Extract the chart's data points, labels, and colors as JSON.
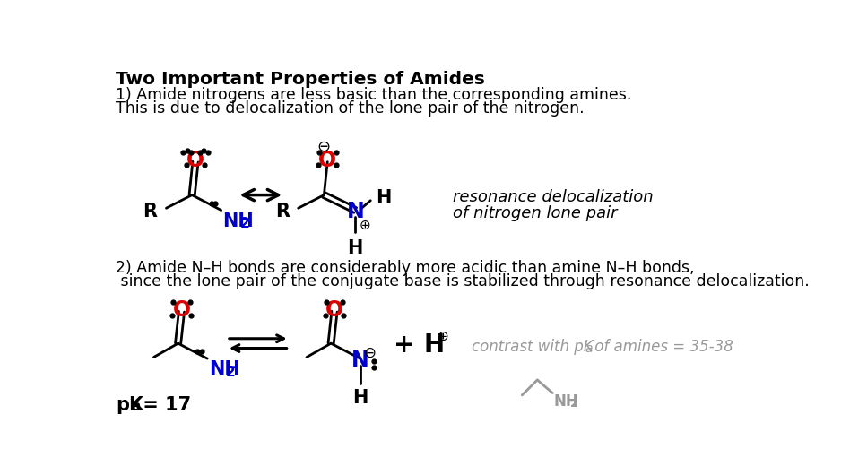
{
  "title": "Two Important Properties of Amides",
  "bg_color": "#ffffff",
  "text_color": "#000000",
  "red_color": "#dd0000",
  "blue_color": "#0000cc",
  "gray_color": "#999999",
  "line1_text": "1) Amide nitrogens are less basic than the corresponding amines.",
  "line2_text": "This is due to delocalization of the lone pair of the nitrogen.",
  "line3_text": "2) Amide N–H bonds are considerably more acidic than amine N–H bonds,",
  "line4_text": " since the lone pair of the conjugate base is stabilized through resonance delocalization.",
  "italic1": "resonance delocalization",
  "italic2": "of nitrogen lone pair",
  "italic3a": "contrast with pK",
  "italic3b": "a",
  "italic3c": " of amines = 35-38",
  "pka_label": "pK",
  "pka_sub": "a",
  "pka_val": " = 17"
}
